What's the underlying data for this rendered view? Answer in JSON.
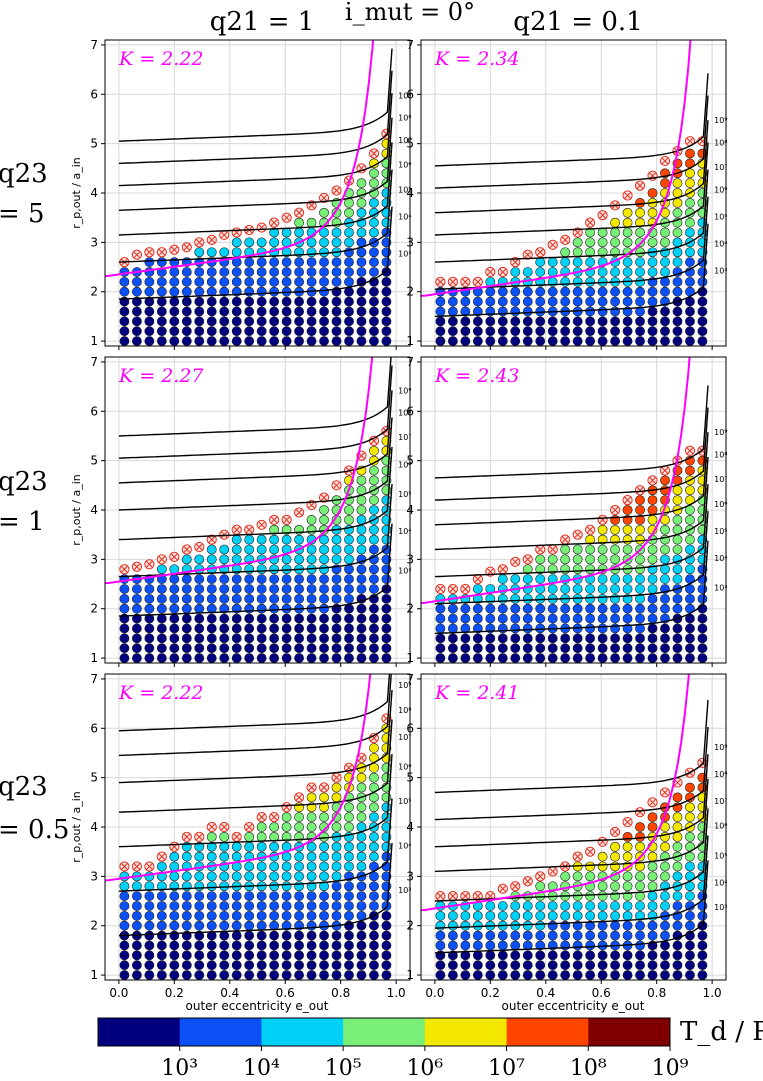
{
  "figure": {
    "column_titles": [
      "q21 = 1",
      "q21 = 0.1"
    ],
    "top_title": "i_mut = 0°",
    "row_labels": [
      {
        "top": "q23",
        "bottom": "= 5"
      },
      {
        "top": "q23",
        "bottom": "= 1"
      },
      {
        "top": "q23",
        "bottom": "= 0.5"
      }
    ],
    "xlabel": "outer eccentricity e_out",
    "ylabel": "r_p,out / a_in",
    "colorbar": {
      "label": "T_d / P_in",
      "colors": [
        "#00007f",
        "#0a50f5",
        "#00d0f5",
        "#78f078",
        "#f5e800",
        "#ff4500",
        "#7f0000"
      ],
      "tick_labels": [
        "10^3",
        "10^4",
        "10^5",
        "10^6",
        "10^7",
        "10^8",
        "10^9"
      ]
    },
    "colors": {
      "critical_curve": "#ff00ff",
      "contour": "#000000",
      "unstable_marker": "#e03020",
      "grid": "#d8d8d8"
    }
  },
  "chart_data": [
    {
      "type": "scatter",
      "row": 0,
      "col": 0,
      "K_label": "K = 2.22",
      "K": 2.22,
      "xlim": [
        -0.05,
        1.05
      ],
      "ylim": [
        0.9,
        7.1
      ],
      "xticks": [
        "0.0",
        "0.2",
        "0.4",
        "0.6",
        "0.8",
        "1.0"
      ],
      "yticks": [
        "1",
        "2",
        "3",
        "4",
        "5",
        "6",
        "7"
      ],
      "stability_top": [
        2.4,
        2.55,
        2.6,
        2.6,
        2.65,
        2.7,
        2.8,
        2.85,
        2.95,
        3.0,
        3.05,
        3.1,
        3.2,
        3.3,
        3.4,
        3.55,
        3.7,
        3.85,
        4.05,
        4.3,
        4.6,
        5.0
      ],
      "contour_levels": [
        "10^3",
        "10^4",
        "10^5",
        "10^6",
        "10^7",
        "10^8",
        "10^9"
      ],
      "contour_base": [
        1.85,
        2.6,
        3.15,
        3.65,
        4.15,
        4.6,
        5.05
      ],
      "scatter_extra": [
        [
          1,
          1.0,
          3.2
        ],
        [
          3,
          0.6,
          3.5
        ],
        [
          2,
          0.95,
          2.0
        ]
      ]
    },
    {
      "type": "scatter",
      "row": 0,
      "col": 1,
      "K_label": "K = 2.34",
      "K": 2.34,
      "xlim": [
        -0.05,
        1.05
      ],
      "ylim": [
        0.9,
        7.1
      ],
      "xticks": [
        "0.0",
        "0.2",
        "0.4",
        "0.6",
        "0.8",
        "1.0"
      ],
      "yticks": [
        "1",
        "2",
        "3",
        "4",
        "5",
        "6",
        "7"
      ],
      "stability_top": [
        2.0,
        2.0,
        2.0,
        2.0,
        2.2,
        2.2,
        2.4,
        2.55,
        2.6,
        2.75,
        2.85,
        3.0,
        3.2,
        3.35,
        3.55,
        3.75,
        3.95,
        4.15,
        4.45,
        4.65,
        4.85,
        4.85
      ],
      "contour_levels": [
        "10^3",
        "10^4",
        "10^5",
        "10^6",
        "10^7",
        "10^8",
        "10^9"
      ],
      "contour_base": [
        1.5,
        2.05,
        2.6,
        3.15,
        3.6,
        4.1,
        4.55
      ],
      "scatter_extra": [
        [
          2,
          0.95,
          1.2
        ],
        [
          1,
          0.35,
          2.0
        ]
      ]
    },
    {
      "type": "scatter",
      "row": 1,
      "col": 0,
      "K_label": "K = 2.27",
      "K": 2.27,
      "xlim": [
        -0.05,
        1.05
      ],
      "ylim": [
        0.9,
        7.1
      ],
      "xticks": [
        "0.0",
        "0.2",
        "0.4",
        "0.6",
        "0.8",
        "1.0"
      ],
      "yticks": [
        "1",
        "2",
        "3",
        "4",
        "5",
        "6",
        "7"
      ],
      "stability_top": [
        2.6,
        2.65,
        2.7,
        2.8,
        2.85,
        3.0,
        3.05,
        3.2,
        3.3,
        3.4,
        3.4,
        3.5,
        3.6,
        3.6,
        3.75,
        3.9,
        4.05,
        4.3,
        4.6,
        4.9,
        5.2,
        5.4
      ],
      "contour_levels": [
        "10^3",
        "10^4",
        "10^5",
        "10^6",
        "10^7",
        "10^8",
        "10^9"
      ],
      "contour_base": [
        1.85,
        2.65,
        3.4,
        4.0,
        4.55,
        5.05,
        5.5
      ],
      "scatter_extra": [
        [
          5,
          0.95,
          2.0
        ],
        [
          2,
          0.05,
          1.8
        ],
        [
          2,
          0.25,
          1.4
        ]
      ]
    },
    {
      "type": "scatter",
      "row": 1,
      "col": 1,
      "K_label": "K = 2.43",
      "K": 2.43,
      "xlim": [
        -0.05,
        1.05
      ],
      "ylim": [
        0.9,
        7.1
      ],
      "xticks": [
        "0.0",
        "0.2",
        "0.4",
        "0.6",
        "0.8",
        "1.0"
      ],
      "yticks": [
        "1",
        "2",
        "3",
        "4",
        "5",
        "6",
        "7"
      ],
      "stability_top": [
        2.2,
        2.2,
        2.2,
        2.4,
        2.55,
        2.6,
        2.75,
        2.8,
        3.0,
        3.0,
        3.2,
        3.3,
        3.4,
        3.6,
        3.8,
        4.0,
        4.2,
        4.4,
        4.6,
        4.8,
        5.0,
        5.0
      ],
      "contour_levels": [
        "10^3",
        "10^4",
        "10^5",
        "10^6",
        "10^7",
        "10^8",
        "10^9"
      ],
      "contour_base": [
        1.5,
        2.1,
        2.65,
        3.2,
        3.7,
        4.2,
        4.65
      ],
      "scatter_extra": [
        [
          2,
          0.1,
          2.4
        ],
        [
          4,
          0.35,
          2.6
        ]
      ]
    },
    {
      "type": "scatter",
      "row": 2,
      "col": 0,
      "K_label": "K = 2.22",
      "K": 2.22,
      "xlim": [
        -0.05,
        1.05
      ],
      "ylim": [
        0.9,
        7.1
      ],
      "xticks": [
        "0.0",
        "0.2",
        "0.4",
        "0.6",
        "0.8",
        "1.0"
      ],
      "yticks": [
        "1",
        "2",
        "3",
        "4",
        "5",
        "6",
        "7"
      ],
      "stability_top": [
        3.0,
        3.0,
        3.0,
        3.2,
        3.4,
        3.6,
        3.6,
        3.8,
        3.8,
        3.6,
        3.8,
        4.0,
        4.0,
        4.2,
        4.4,
        4.6,
        4.6,
        4.8,
        5.0,
        5.2,
        5.6,
        6.0
      ],
      "contour_levels": [
        "10^3",
        "10^4",
        "10^5",
        "10^6",
        "10^7",
        "10^8",
        "10^9"
      ],
      "contour_base": [
        1.8,
        2.7,
        3.6,
        4.3,
        4.9,
        5.45,
        5.95
      ],
      "scatter_extra": [
        [
          2,
          0.25,
          1.4
        ],
        [
          3,
          0.7,
          2.8
        ],
        [
          5,
          0.4,
          3.6
        ]
      ]
    },
    {
      "type": "scatter",
      "row": 2,
      "col": 1,
      "K_label": "K = 2.41",
      "K": 2.41,
      "xlim": [
        -0.05,
        1.05
      ],
      "ylim": [
        0.9,
        7.1
      ],
      "xticks": [
        "0.0",
        "0.2",
        "0.4",
        "0.6",
        "0.8",
        "1.0"
      ],
      "yticks": [
        "1",
        "2",
        "3",
        "4",
        "5",
        "6",
        "7"
      ],
      "stability_top": [
        2.4,
        2.4,
        2.4,
        2.4,
        2.4,
        2.55,
        2.6,
        2.7,
        2.8,
        2.9,
        3.0,
        3.2,
        3.3,
        3.5,
        3.7,
        3.9,
        4.1,
        4.3,
        4.5,
        4.7,
        4.9,
        5.1
      ],
      "contour_levels": [
        "10^3",
        "10^4",
        "10^5",
        "10^6",
        "10^7",
        "10^8",
        "10^9"
      ],
      "contour_base": [
        1.45,
        1.95,
        2.5,
        3.1,
        3.6,
        4.15,
        4.7
      ],
      "scatter_extra": [
        [
          3,
          0.95,
          2.4
        ]
      ]
    }
  ]
}
